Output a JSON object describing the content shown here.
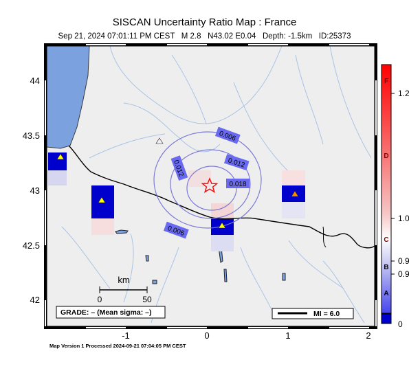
{
  "header": {
    "title": "SISCAN Uncertainty Ratio Map : France",
    "subtitle": "Sep 21, 2024 07:01:11 PM CEST   M 2.8   N43.02 E0.04   Depth: -1.5km   ID:25373"
  },
  "map": {
    "lat_ticks": [
      "44",
      "43.5",
      "43",
      "42.5",
      "42"
    ],
    "lon_ticks": [
      "-1",
      "0",
      "1",
      "2"
    ],
    "scale_bar": {
      "label": "km",
      "ticks": [
        "0",
        "50"
      ]
    },
    "grade_box": "GRADE: – (Mean sigma: –)",
    "mi_legend": "MI = 6.0",
    "contour_labels": [
      "0.006",
      "0.012",
      "0.012",
      "0.018",
      "0.006"
    ],
    "colors": {
      "land": "#eeeeee",
      "sea": "#7ba2df",
      "river": "#a9c3e6",
      "contour": "#7b7bd6",
      "epicenter": "#ff0000"
    }
  },
  "colorbar": {
    "letters": [
      "F",
      "D",
      "C",
      "B",
      "A"
    ],
    "values": [
      "1.2",
      "1.0",
      "0.9",
      "0.9",
      "0"
    ]
  },
  "footer": "Map Version 1 Processed 2024-09-21 07:04:05 PM CEST"
}
